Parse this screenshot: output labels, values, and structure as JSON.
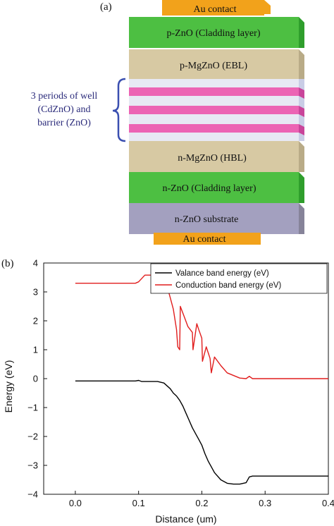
{
  "panel_a": {
    "label": "(a)",
    "brace_text_lines": [
      "3 periods of well",
      "(CdZnO) and",
      "barrier (ZnO)"
    ],
    "layers": [
      {
        "name": "Au contact",
        "color": "#f2a21b"
      },
      {
        "name": "p-ZnO (Cladding layer)",
        "color": "#4dbf42"
      },
      {
        "name": "p-MgZnO (EBL)",
        "color": "#d7c9a3"
      },
      {
        "name": "",
        "color": "#e7e9f4"
      },
      {
        "name": "",
        "color": "#ec64b4"
      },
      {
        "name": "n-MgZnO (HBL)",
        "color": "#d7c9a3"
      },
      {
        "name": "n-ZnO (Cladding layer)",
        "color": "#4dbf42"
      },
      {
        "name": "n-ZnO substrate",
        "color": "#a3a0bf"
      },
      {
        "name": "Au contact",
        "color": "#f2a21b"
      }
    ],
    "brace_color": "#3a4fb0"
  },
  "panel_b": {
    "label": "(b)",
    "chart_data": {
      "type": "line",
      "xlabel": "Distance (um)",
      "ylabel": "Energy (eV)",
      "xlim": [
        -0.05,
        0.4
      ],
      "ylim": [
        -4,
        4
      ],
      "xticks": [
        "0.0",
        "0.1",
        "0.2",
        "0.3",
        "0.4"
      ],
      "yticks": [
        "4",
        "3",
        "2",
        "1",
        "0",
        "−1",
        "−2",
        "−3",
        "−4"
      ],
      "legend_position": "top-right",
      "series": [
        {
          "name": "Valance band energy (eV)",
          "color": "#000000",
          "x": [
            0.0,
            0.095,
            0.1,
            0.105,
            0.13,
            0.14,
            0.15,
            0.155,
            0.16,
            0.165,
            0.17,
            0.175,
            0.18,
            0.185,
            0.19,
            0.195,
            0.2,
            0.205,
            0.21,
            0.215,
            0.22,
            0.23,
            0.24,
            0.25,
            0.26,
            0.27,
            0.275,
            0.28,
            0.3,
            0.35,
            0.4
          ],
          "y": [
            -0.08,
            -0.08,
            -0.06,
            -0.1,
            -0.1,
            -0.15,
            -0.35,
            -0.5,
            -0.6,
            -0.75,
            -0.95,
            -1.2,
            -1.45,
            -1.7,
            -1.9,
            -2.1,
            -2.3,
            -2.6,
            -2.85,
            -3.05,
            -3.25,
            -3.5,
            -3.62,
            -3.65,
            -3.65,
            -3.6,
            -3.4,
            -3.37,
            -3.37,
            -3.37,
            -3.37
          ]
        },
        {
          "name": "Conduction band energy (eV)",
          "color": "#e11d1d",
          "x": [
            0.0,
            0.095,
            0.1,
            0.11,
            0.13,
            0.14,
            0.145,
            0.15,
            0.155,
            0.16,
            0.162,
            0.165,
            0.166,
            0.172,
            0.178,
            0.185,
            0.186,
            0.192,
            0.195,
            0.2,
            0.201,
            0.207,
            0.21,
            0.213,
            0.215,
            0.22,
            0.23,
            0.24,
            0.26,
            0.27,
            0.275,
            0.28,
            0.3,
            0.35,
            0.4
          ],
          "y": [
            3.3,
            3.3,
            3.35,
            3.58,
            3.58,
            3.52,
            3.2,
            2.8,
            2.4,
            1.7,
            1.1,
            1.0,
            2.5,
            2.15,
            1.8,
            1.6,
            1.0,
            1.9,
            1.7,
            1.4,
            0.6,
            1.1,
            0.9,
            0.7,
            0.2,
            0.75,
            0.45,
            0.2,
            0.02,
            0.0,
            0.08,
            0.0,
            0.0,
            0.0,
            0.0
          ]
        }
      ]
    }
  }
}
